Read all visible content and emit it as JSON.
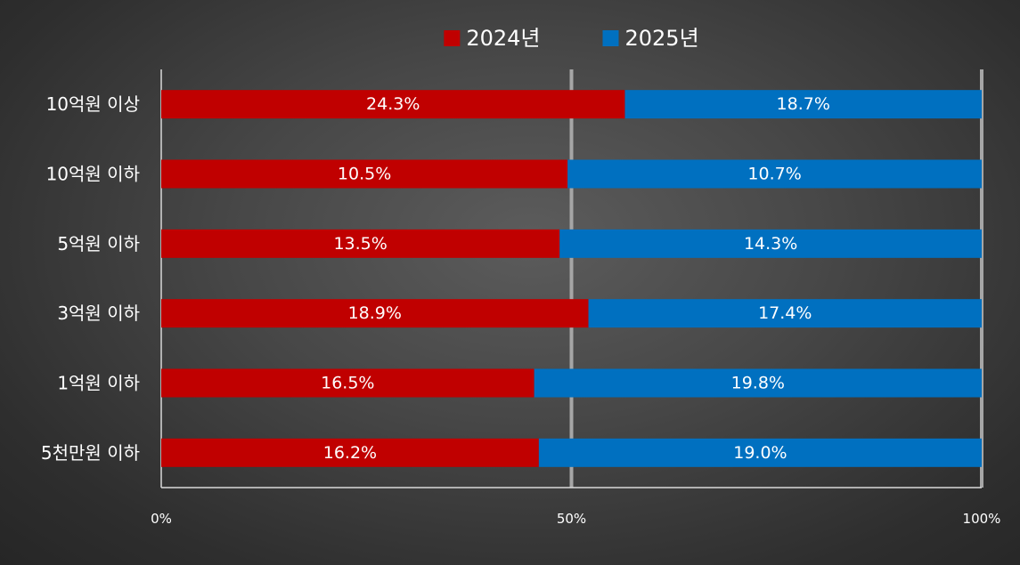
{
  "chart_data": {
    "type": "bar",
    "orientation": "horizontal",
    "stacked": "100%",
    "categories": [
      "10억원 이상",
      "10억원 이하",
      "5억원 이하",
      "3억원 이하",
      "1억원 이하",
      "5천만원 이하"
    ],
    "series": [
      {
        "name": "2024년",
        "color": "#c00000",
        "values": [
          24.3,
          10.5,
          13.5,
          18.9,
          16.5,
          16.2
        ],
        "labels": [
          "24.3%",
          "10.5%",
          "13.5%",
          "18.9%",
          "16.5%",
          "16.2%"
        ]
      },
      {
        "name": "2025년",
        "color": "#0070c0",
        "values": [
          18.7,
          10.7,
          14.3,
          17.4,
          19.8,
          19.0
        ],
        "labels": [
          "18.7%",
          "10.7%",
          "14.3%",
          "17.4%",
          "19.8%",
          "19.0%"
        ]
      }
    ],
    "xticks": [
      "0%",
      "50%",
      "100%"
    ],
    "xlim": [
      0,
      100
    ],
    "legend": "top-center",
    "grid": true,
    "gridline_color": "#a6a6a6"
  }
}
